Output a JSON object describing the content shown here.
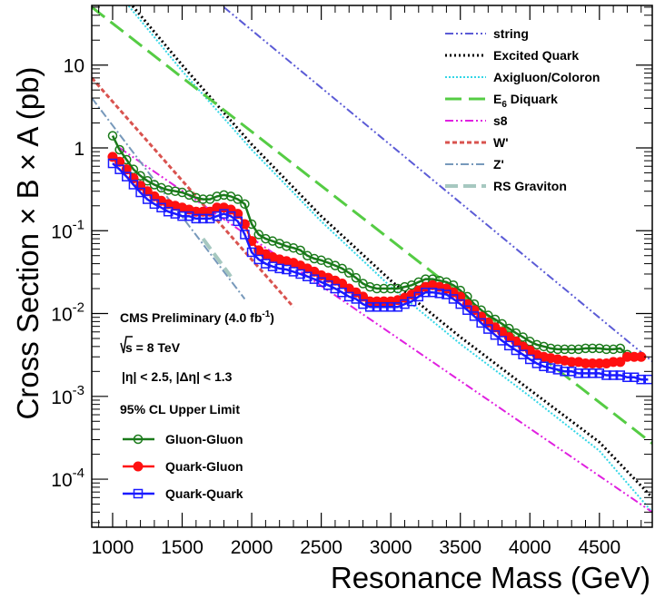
{
  "chart_data": {
    "type": "line",
    "xlabel": "Resonance Mass (GeV)",
    "ylabel": "Cross Section × B × A (pb)",
    "x_range": [
      850,
      4880
    ],
    "y_range_log10": [
      -4.58,
      1.72
    ],
    "y_scale": "log",
    "x_ticks": [
      1000,
      1500,
      2000,
      2500,
      3000,
      3500,
      4000,
      4500
    ],
    "y_ticks": [
      {
        "value": 0.0001,
        "base": "10",
        "exp": "-4"
      },
      {
        "value": 0.001,
        "base": "10",
        "exp": "-3"
      },
      {
        "value": 0.01,
        "base": "10",
        "exp": "-2"
      },
      {
        "value": 0.1,
        "base": "10",
        "exp": "-1"
      },
      {
        "value": 1,
        "base": "1",
        "exp": ""
      },
      {
        "value": 10,
        "base": "10",
        "exp": ""
      }
    ],
    "legend_placement": "top-right",
    "annotations": {
      "line1_text": "CMS Preliminary (4.0 fb",
      "line1_sup": "-1",
      "line1_end": ")",
      "line2": "s = 8 TeV",
      "line3": "|η| < 2.5, |Δη| < 1.3",
      "line4": "95% CL Upper Limit"
    },
    "theory_series": [
      {
        "name": "string",
        "color": "#5b5bd6",
        "dash": "9 3 2 3 2 3",
        "width": 2,
        "x": [
          1800,
          4880
        ],
        "y": [
          50,
          0.00264
        ]
      },
      {
        "name": "Excited Quark",
        "color": "#000000",
        "dash": "2 3",
        "width": 3,
        "x": [
          850,
          1500,
          2000,
          2500,
          3000,
          3500,
          4000,
          4500,
          4880
        ],
        "y": [
          200,
          10,
          1.1,
          0.15,
          0.025,
          0.0052,
          0.0012,
          0.00028,
          6e-05
        ]
      },
      {
        "name": "Axigluon/Coloron",
        "color": "#33d6e6",
        "dash": "2 2",
        "width": 2,
        "x": [
          850,
          1500,
          2000,
          2500,
          3000,
          3500,
          4000,
          4500,
          4880
        ],
        "y": [
          180,
          8.5,
          0.95,
          0.13,
          0.021,
          0.0043,
          0.001,
          0.00022,
          4e-05
        ]
      },
      {
        "name": "Diquark",
        "name_prefix": "E",
        "name_sub": "6",
        "color": "#55cc44",
        "dash": "18 8",
        "width": 3,
        "x": [
          850,
          4880
        ],
        "y": [
          50,
          0.00027
        ]
      },
      {
        "name": "s8",
        "color": "#e020e0",
        "dash": "9 3 2 3 2 3",
        "width": 2,
        "x": [
          1050,
          4880
        ],
        "y": [
          1,
          4e-05
        ]
      },
      {
        "name": "W'",
        "color": "#d9534f",
        "dash": "5 3",
        "width": 3,
        "x": [
          850,
          2300
        ],
        "y": [
          7,
          0.012
        ]
      },
      {
        "name": "Z'",
        "color": "#7799bb",
        "dash": "9 3 2 3",
        "width": 2,
        "x": [
          850,
          1950
        ],
        "y": [
          4,
          0.015
        ]
      },
      {
        "name": "RS Graviton",
        "color": "#a6c8c0",
        "dash": "14 6",
        "width": 4,
        "x": [
          1650,
          1850
        ],
        "y": [
          0.08,
          0.028
        ]
      }
    ],
    "limit_series": [
      {
        "name": "Gluon-Gluon",
        "color": "#1a7a1a",
        "marker": "open-circle",
        "x": [
          1000,
          1050,
          1100,
          1150,
          1200,
          1250,
          1300,
          1350,
          1400,
          1450,
          1500,
          1550,
          1600,
          1650,
          1700,
          1750,
          1800,
          1850,
          1900,
          1950,
          2000,
          2050,
          2100,
          2150,
          2200,
          2250,
          2300,
          2350,
          2400,
          2450,
          2500,
          2550,
          2600,
          2650,
          2700,
          2750,
          2800,
          2850,
          2900,
          2950,
          3000,
          3050,
          3100,
          3150,
          3200,
          3250,
          3300,
          3350,
          3400,
          3450,
          3500,
          3550,
          3600,
          3650,
          3700,
          3750,
          3800,
          3850,
          3900,
          3950,
          4000,
          4050,
          4100,
          4150,
          4200,
          4250,
          4300,
          4350,
          4400,
          4450,
          4500,
          4550,
          4600,
          4650,
          4700
        ],
        "y": [
          1.4,
          0.95,
          0.72,
          0.55,
          0.46,
          0.4,
          0.36,
          0.33,
          0.31,
          0.3,
          0.29,
          0.27,
          0.25,
          0.24,
          0.24,
          0.26,
          0.27,
          0.26,
          0.24,
          0.21,
          0.12,
          0.09,
          0.08,
          0.075,
          0.07,
          0.065,
          0.062,
          0.058,
          0.05,
          0.046,
          0.044,
          0.041,
          0.038,
          0.035,
          0.031,
          0.027,
          0.023,
          0.021,
          0.02,
          0.02,
          0.02,
          0.02,
          0.021,
          0.022,
          0.024,
          0.026,
          0.026,
          0.025,
          0.024,
          0.022,
          0.019,
          0.016,
          0.013,
          0.011,
          0.0095,
          0.0085,
          0.0075,
          0.0066,
          0.0058,
          0.0052,
          0.0046,
          0.0042,
          0.004,
          0.0038,
          0.0037,
          0.0037,
          0.0037,
          0.0037,
          0.0038,
          0.0038,
          0.0038,
          0.0037,
          0.0037,
          0.0038,
          0.0032
        ]
      },
      {
        "name": "Quark-Gluon",
        "color": "#ff1010",
        "marker": "filled-circle",
        "x": [
          1000,
          1050,
          1100,
          1150,
          1200,
          1250,
          1300,
          1350,
          1400,
          1450,
          1500,
          1550,
          1600,
          1650,
          1700,
          1750,
          1800,
          1850,
          1900,
          1950,
          2000,
          2050,
          2100,
          2150,
          2200,
          2250,
          2300,
          2350,
          2400,
          2450,
          2500,
          2550,
          2600,
          2650,
          2700,
          2750,
          2800,
          2850,
          2900,
          2950,
          3000,
          3050,
          3100,
          3150,
          3200,
          3250,
          3300,
          3350,
          3400,
          3450,
          3500,
          3550,
          3600,
          3650,
          3700,
          3750,
          3800,
          3850,
          3900,
          3950,
          4000,
          4050,
          4100,
          4150,
          4200,
          4250,
          4300,
          4350,
          4400,
          4450,
          4500,
          4550,
          4600,
          4650,
          4700,
          4750,
          4800
        ],
        "y": [
          0.78,
          0.68,
          0.55,
          0.43,
          0.35,
          0.3,
          0.26,
          0.23,
          0.21,
          0.2,
          0.19,
          0.18,
          0.17,
          0.17,
          0.17,
          0.19,
          0.19,
          0.18,
          0.16,
          0.12,
          0.075,
          0.058,
          0.052,
          0.048,
          0.045,
          0.043,
          0.041,
          0.038,
          0.035,
          0.032,
          0.029,
          0.027,
          0.025,
          0.023,
          0.02,
          0.018,
          0.016,
          0.014,
          0.014,
          0.014,
          0.014,
          0.0145,
          0.0155,
          0.017,
          0.019,
          0.021,
          0.022,
          0.021,
          0.02,
          0.018,
          0.016,
          0.013,
          0.011,
          0.0092,
          0.0078,
          0.0068,
          0.006,
          0.0052,
          0.0046,
          0.004,
          0.0036,
          0.0032,
          0.003,
          0.0029,
          0.0028,
          0.0027,
          0.0026,
          0.0026,
          0.0025,
          0.0025,
          0.0025,
          0.0025,
          0.0026,
          0.0026,
          0.003,
          0.003,
          0.003
        ]
      },
      {
        "name": "Quark-Quark",
        "color": "#1a1aff",
        "marker": "open-square",
        "x": [
          1000,
          1050,
          1100,
          1150,
          1200,
          1250,
          1300,
          1350,
          1400,
          1450,
          1500,
          1550,
          1600,
          1650,
          1700,
          1750,
          1800,
          1850,
          1900,
          1950,
          2000,
          2050,
          2100,
          2150,
          2200,
          2250,
          2300,
          2350,
          2400,
          2450,
          2500,
          2550,
          2600,
          2650,
          2700,
          2750,
          2800,
          2850,
          2900,
          2950,
          3000,
          3050,
          3100,
          3150,
          3200,
          3250,
          3300,
          3350,
          3400,
          3450,
          3500,
          3550,
          3600,
          3650,
          3700,
          3750,
          3800,
          3850,
          3900,
          3950,
          4000,
          4050,
          4100,
          4150,
          4200,
          4250,
          4300,
          4350,
          4400,
          4450,
          4500,
          4550,
          4600,
          4650,
          4700,
          4750,
          4800,
          4850
        ],
        "y": [
          0.65,
          0.55,
          0.45,
          0.36,
          0.29,
          0.24,
          0.21,
          0.19,
          0.17,
          0.16,
          0.15,
          0.15,
          0.14,
          0.14,
          0.14,
          0.15,
          0.16,
          0.15,
          0.13,
          0.09,
          0.055,
          0.045,
          0.04,
          0.037,
          0.035,
          0.034,
          0.032,
          0.03,
          0.028,
          0.026,
          0.024,
          0.022,
          0.02,
          0.018,
          0.016,
          0.015,
          0.013,
          0.012,
          0.012,
          0.012,
          0.012,
          0.012,
          0.013,
          0.014,
          0.016,
          0.018,
          0.018,
          0.0175,
          0.017,
          0.015,
          0.013,
          0.011,
          0.0093,
          0.0077,
          0.0065,
          0.0055,
          0.0047,
          0.0041,
          0.0036,
          0.0032,
          0.0028,
          0.0025,
          0.0023,
          0.0022,
          0.0021,
          0.002,
          0.002,
          0.0019,
          0.0019,
          0.0019,
          0.0019,
          0.0018,
          0.0018,
          0.0018,
          0.0017,
          0.0017,
          0.0016,
          0.0016
        ]
      }
    ]
  }
}
